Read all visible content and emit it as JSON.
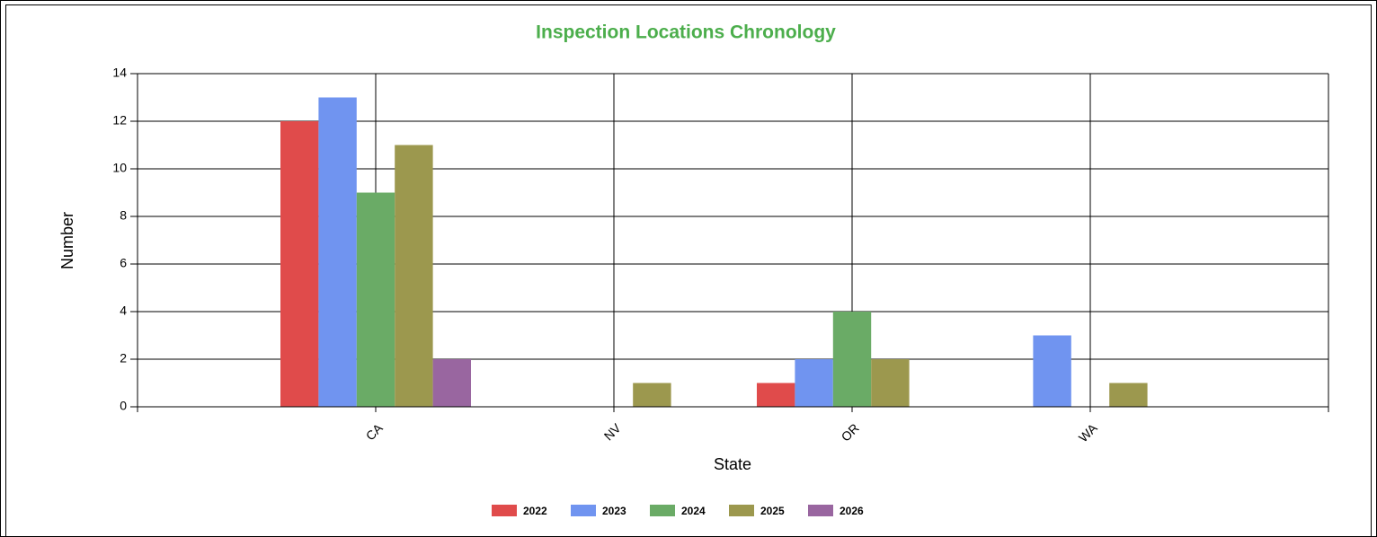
{
  "chart_data": {
    "type": "bar",
    "title": "Inspection Locations Chronology",
    "x_label": "State",
    "y_label": "Number",
    "categories": [
      "CA",
      "NV",
      "OR",
      "WA"
    ],
    "series": [
      {
        "name": "2022",
        "color": "#e04b4b",
        "values": [
          12,
          0,
          1,
          0
        ]
      },
      {
        "name": "2023",
        "color": "#7094f0",
        "values": [
          13,
          0,
          2,
          3
        ]
      },
      {
        "name": "2024",
        "color": "#6aab66",
        "values": [
          9,
          0,
          4,
          0
        ]
      },
      {
        "name": "2025",
        "color": "#9c984e",
        "values": [
          11,
          1,
          2,
          1
        ]
      },
      {
        "name": "2026",
        "color": "#9966a0",
        "values": [
          2,
          0,
          0,
          0
        ]
      }
    ],
    "ylim": [
      0,
      14
    ],
    "yticks": [
      0,
      2,
      4,
      6,
      8,
      10,
      12,
      14
    ],
    "grid": true,
    "legend": "bottom"
  }
}
